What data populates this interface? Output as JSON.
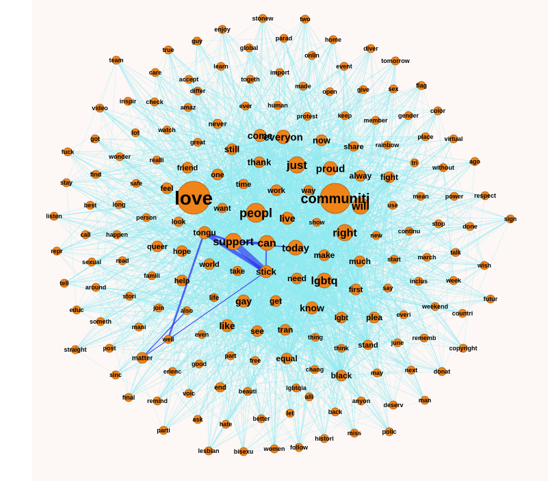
{
  "colors": {
    "background": "#fdf7f6",
    "edge_light": "#8fe9f0",
    "edge_dark": "#2a2af0",
    "node_fill": "#f08418",
    "node_stroke": "#a85a10",
    "label": "#000000"
  },
  "words": [
    "love",
    "communiti",
    "peopl",
    "will",
    "just",
    "right",
    "support",
    "can",
    "today",
    "lgbtq",
    "everyon",
    "come",
    "proud",
    "live",
    "tongu",
    "gay",
    "like",
    "stick",
    "know",
    "thank",
    "still",
    "now",
    "fight",
    "alway",
    "share",
    "need",
    "make",
    "much",
    "first",
    "see",
    "tran",
    "equal",
    "black",
    "lgbt",
    "plea",
    "stand",
    "get",
    "take",
    "world",
    "hope",
    "queer",
    "help",
    "work",
    "way",
    "one",
    "friend",
    "want",
    "time",
    "feel",
    "look",
    "never",
    "life",
    "matter",
    "also",
    "well",
    "famili",
    "stori",
    "join",
    "mani",
    "even",
    "good",
    "part",
    "free",
    "thing",
    "think",
    "chang",
    "lgbtqia",
    "end",
    "beauti",
    "alli",
    "back",
    "anyon",
    "deserv",
    "polic",
    "miss",
    "histori",
    "let",
    "better",
    "women",
    "follow",
    "bisexu",
    "lesbian",
    "parti",
    "ask",
    "hate",
    "voic",
    "remind",
    "final",
    "sinc",
    "erienc",
    "straight",
    "post",
    "someth",
    "educ",
    "around",
    "tell",
    "sexual",
    "read",
    "repr",
    "call",
    "happen",
    "listen",
    "best",
    "long",
    "person",
    "stay",
    "find",
    "fuck",
    "wonder",
    "realli",
    "safe",
    "got",
    "lot",
    "watch",
    "great",
    "video",
    "inspir",
    "check",
    "amaz",
    "differ",
    "team",
    "care",
    "accept",
    "learn",
    "togeth",
    "true",
    "guy",
    "enjoy",
    "global",
    "stonew",
    "parad",
    "two",
    "home",
    "onlin",
    "event",
    "diver",
    "tomorrow",
    "import",
    "made",
    "ever",
    "human",
    "open",
    "give",
    "sex",
    "flag",
    "protest",
    "keep",
    "member",
    "gender",
    "color",
    "place",
    "virtual",
    "rainbow",
    "tri",
    "without",
    "ago",
    "mean",
    "power",
    "respect",
    "sign",
    "use",
    "stop",
    "done",
    "continu",
    "talk",
    "march",
    "start",
    "new",
    "wish",
    "inclus",
    "week",
    "futur",
    "say",
    "weekend",
    "countri",
    "everi",
    "rememb",
    "june",
    "copyright",
    "may",
    "next",
    "donat",
    "man",
    "show"
  ]
}
